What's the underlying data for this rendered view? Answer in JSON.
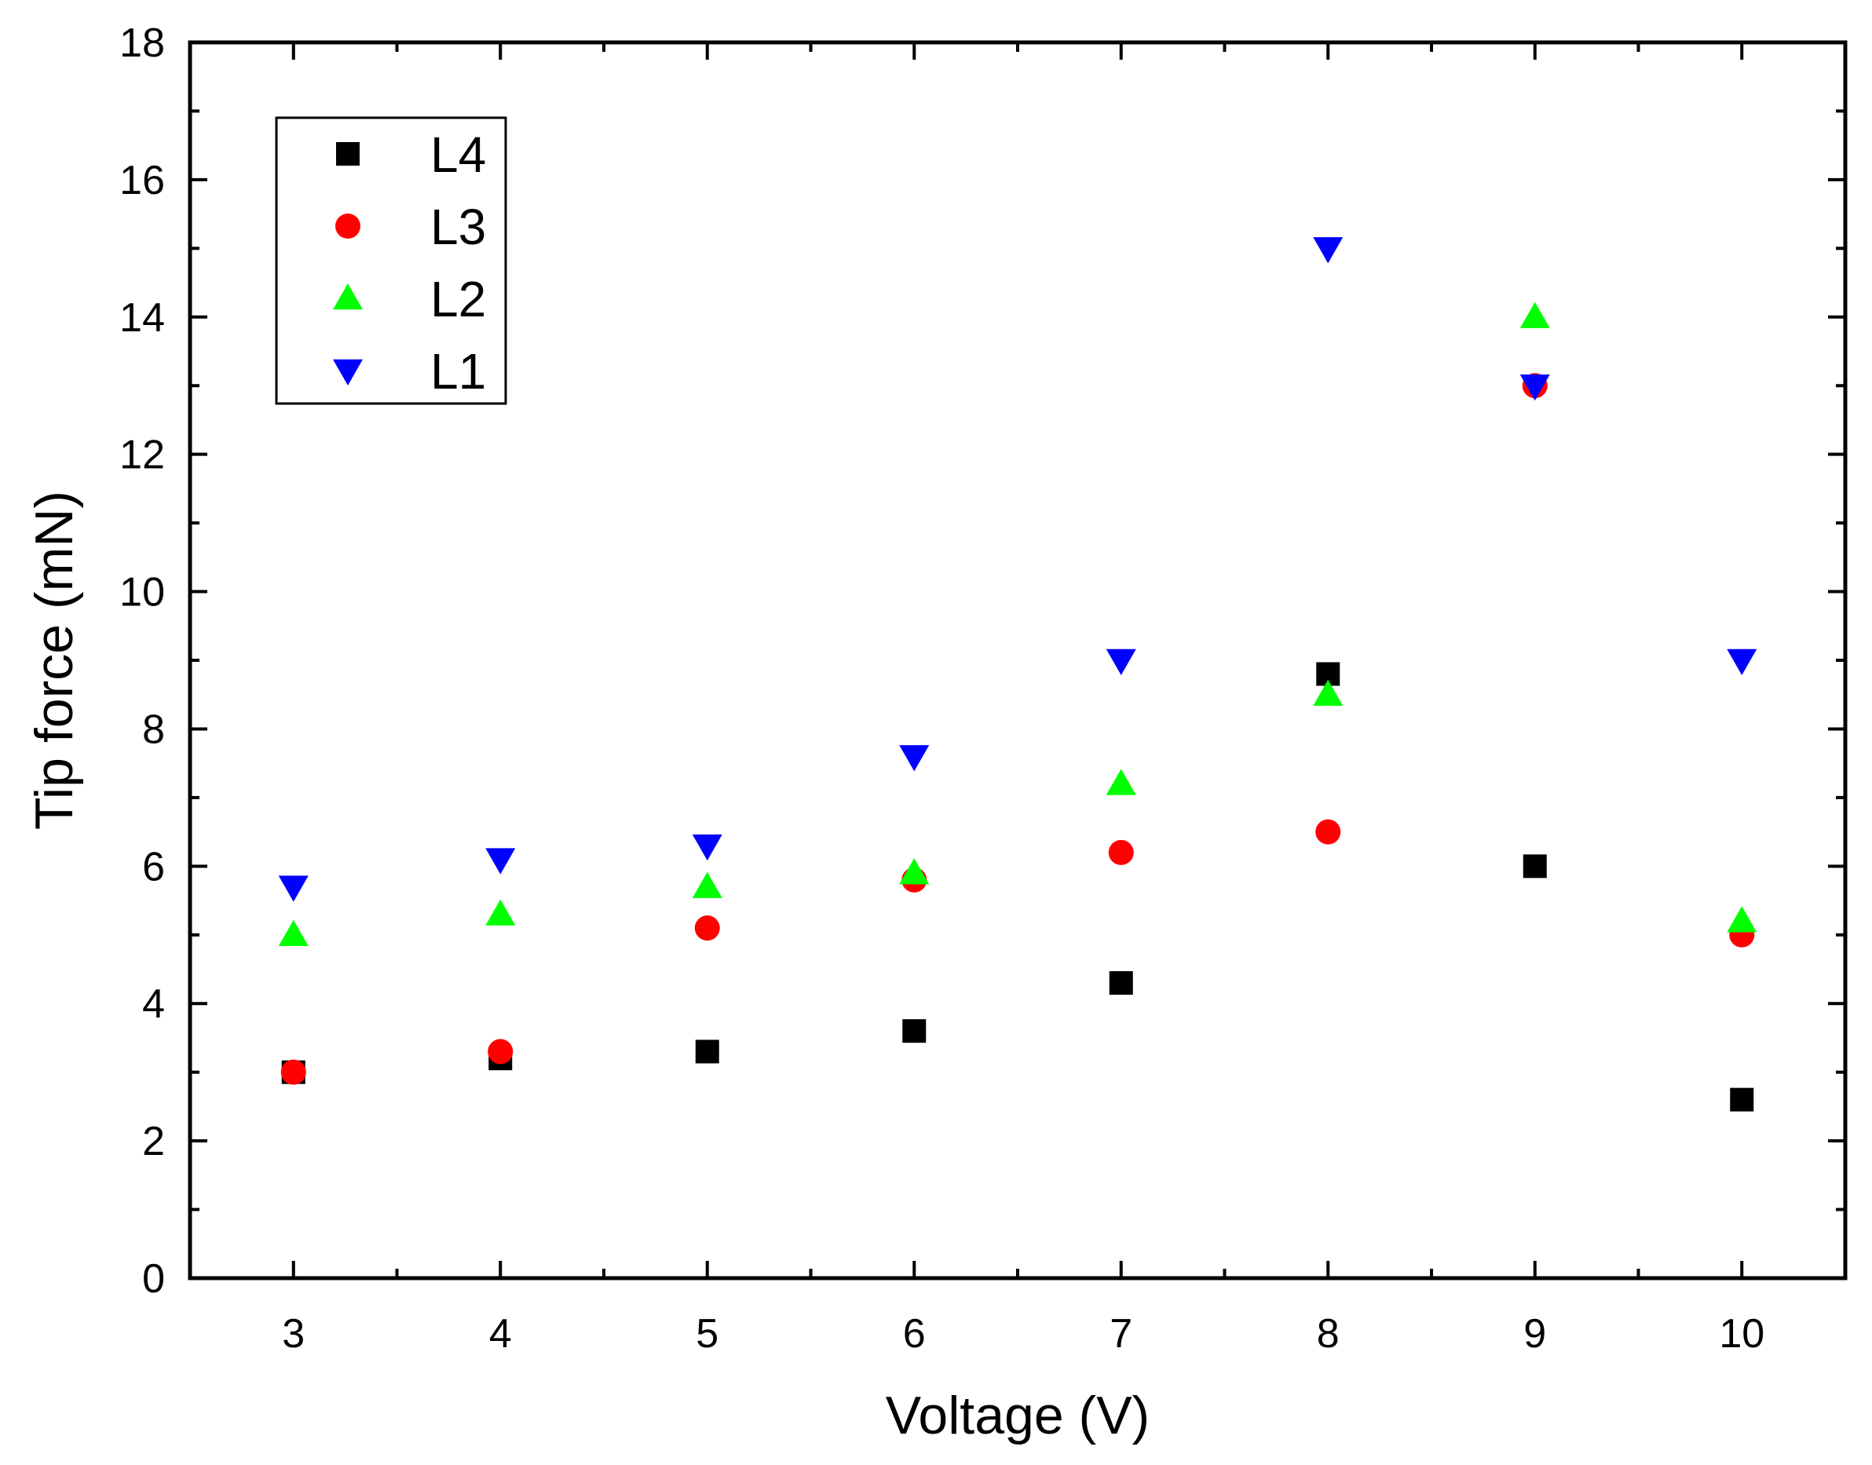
{
  "chart_data": {
    "type": "scatter",
    "title": "",
    "xlabel": "Voltage (V)",
    "ylabel": "Tip force (mN)",
    "xlim": [
      2.5,
      10.5
    ],
    "ylim": [
      0,
      18
    ],
    "xticks": [
      3,
      4,
      5,
      6,
      7,
      8,
      9,
      10
    ],
    "yticks": [
      0,
      2,
      4,
      6,
      8,
      10,
      12,
      14,
      16,
      18
    ],
    "grid": false,
    "legend_position": "top-left",
    "x": [
      3,
      4,
      5,
      6,
      7,
      8,
      9,
      10
    ],
    "series": [
      {
        "name": "L4",
        "marker": "square",
        "color": "#000000",
        "values": [
          3.0,
          3.2,
          3.3,
          3.6,
          4.3,
          8.8,
          6.0,
          2.6
        ]
      },
      {
        "name": "L3",
        "marker": "circle",
        "color": "#ff0000",
        "values": [
          3.0,
          3.3,
          5.1,
          5.8,
          6.2,
          6.5,
          13.0,
          5.0
        ]
      },
      {
        "name": "L2",
        "marker": "triangle-up",
        "color": "#00ff00",
        "values": [
          5.0,
          5.3,
          5.7,
          5.9,
          7.2,
          8.5,
          14.0,
          5.2
        ]
      },
      {
        "name": "L1",
        "marker": "triangle-down",
        "color": "#0000ff",
        "values": [
          5.7,
          6.1,
          6.3,
          7.6,
          9.0,
          15.0,
          13.0,
          9.0
        ]
      }
    ]
  }
}
